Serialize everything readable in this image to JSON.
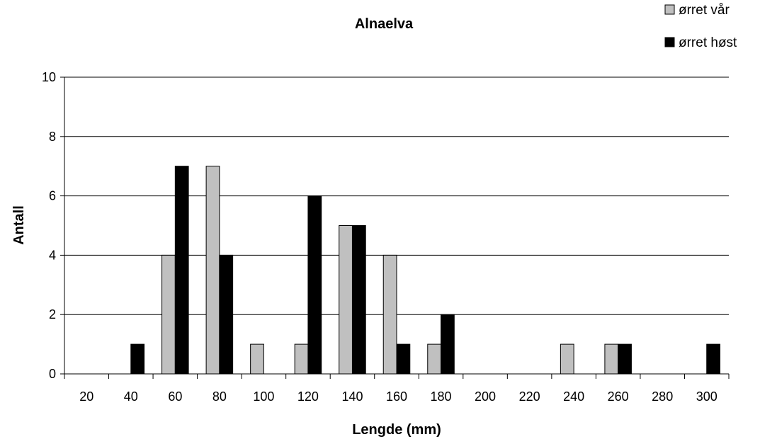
{
  "chart_data": {
    "type": "bar",
    "title": "Alnaelva",
    "xlabel": "Lengde (mm)",
    "ylabel": "Antall",
    "categories": [
      "20",
      "40",
      "60",
      "80",
      "100",
      "120",
      "140",
      "160",
      "180",
      "200",
      "220",
      "240",
      "260",
      "280",
      "300"
    ],
    "ylim": [
      0,
      10
    ],
    "yticks": [
      0,
      2,
      4,
      6,
      8,
      10
    ],
    "grid": true,
    "legend_position": "top-right",
    "series": [
      {
        "name": "ørret vår",
        "color": "#c0c0c0",
        "values": [
          0,
          0,
          4,
          7,
          1,
          1,
          5,
          4,
          1,
          0,
          0,
          1,
          1,
          0,
          0
        ]
      },
      {
        "name": "ørret høst",
        "color": "#000000",
        "values": [
          0,
          1,
          7,
          4,
          0,
          6,
          5,
          1,
          2,
          0,
          0,
          0,
          1,
          0,
          1
        ]
      }
    ]
  }
}
